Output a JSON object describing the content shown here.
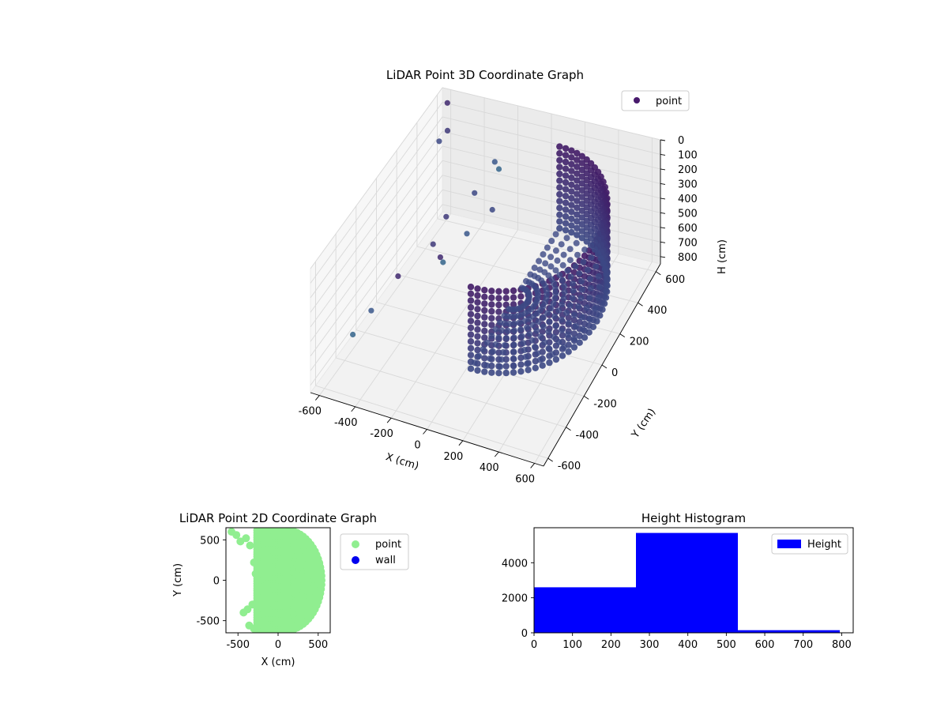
{
  "chart_data": [
    {
      "type": "scatter",
      "projection": "3d",
      "title": "LiDAR Point 3D Coordinate Graph",
      "xlabel": "X (cm)",
      "ylabel": "Y (cm)",
      "zlabel": "H (cm)",
      "xlim": [
        -650,
        650
      ],
      "ylim": [
        -650,
        650
      ],
      "zlim": [
        0,
        850
      ],
      "z_inverted": true,
      "xticks": [
        -600,
        -400,
        -200,
        0,
        200,
        400,
        600
      ],
      "yticks": [
        -600,
        -400,
        -200,
        0,
        200,
        400,
        600
      ],
      "zticks": [
        0,
        100,
        200,
        300,
        400,
        500,
        600,
        700,
        800
      ],
      "grid": true,
      "legend": {
        "placement": "top-right",
        "entries": [
          {
            "name": "point",
            "color": "#481a6c"
          }
        ]
      },
      "colormap": [
        "#440154",
        "#3b528b",
        "#21918c",
        "#5ec962",
        "#fde725"
      ],
      "sample_points": [
        [
          -590,
          600,
          40
        ],
        [
          -500,
          450,
          60
        ],
        [
          -520,
          400,
          90
        ],
        [
          -610,
          -120,
          780
        ],
        [
          -640,
          -250,
          830
        ],
        [
          -560,
          60,
          700
        ],
        [
          -450,
          220,
          600
        ],
        [
          -300,
          380,
          360
        ],
        [
          -250,
          500,
          250
        ],
        [
          -180,
          420,
          200
        ],
        [
          -350,
          120,
          560
        ],
        [
          -420,
          300,
          480
        ],
        [
          -150,
          300,
          350
        ],
        [
          -230,
          180,
          420
        ],
        [
          -300,
          60,
          520
        ]
      ],
      "wall_shape": {
        "center": [
          150,
          0
        ],
        "radius": 470,
        "height_range": [
          0,
          560
        ]
      }
    },
    {
      "type": "scatter",
      "title": "LiDAR Point 2D Coordinate Graph",
      "xlabel": "X (cm)",
      "ylabel": "Y (cm)",
      "xlim": [
        -650,
        650
      ],
      "ylim": [
        -650,
        650
      ],
      "xticks": [
        -500,
        0,
        500
      ],
      "yticks": [
        -500,
        0,
        500
      ],
      "legend": {
        "placement": "outside-right",
        "entries": [
          {
            "name": "point",
            "color": "#90ee90"
          },
          {
            "name": "wall",
            "color": "#0000ee"
          }
        ]
      },
      "series": [
        {
          "name": "point",
          "color": "#90ee90",
          "x": [
            -580,
            -520,
            -470,
            -400,
            -350,
            -300,
            -280,
            -250,
            -320,
            -380,
            -430,
            -360,
            -300,
            -250
          ],
          "y": [
            600,
            560,
            480,
            520,
            430,
            220,
            80,
            -120,
            -300,
            -360,
            -400,
            -560,
            -600,
            -520
          ]
        },
        {
          "name": "wall",
          "color": "#0000ee",
          "x": [],
          "y": []
        }
      ]
    },
    {
      "type": "bar",
      "subtype": "histogram",
      "title": "Height Histogram",
      "xlabel": "",
      "ylabel": "",
      "xlim": [
        0,
        830
      ],
      "ylim": [
        0,
        6000
      ],
      "xticks": [
        0,
        100,
        200,
        300,
        400,
        500,
        600,
        700,
        800
      ],
      "yticks": [
        0,
        2000,
        4000
      ],
      "legend": {
        "placement": "top-right",
        "entries": [
          {
            "name": "Height",
            "color": "#0000ff"
          }
        ]
      },
      "bins": [
        [
          0,
          265,
          2600
        ],
        [
          265,
          530,
          5700
        ],
        [
          530,
          795,
          150
        ]
      ],
      "color": "#0000ff"
    }
  ]
}
